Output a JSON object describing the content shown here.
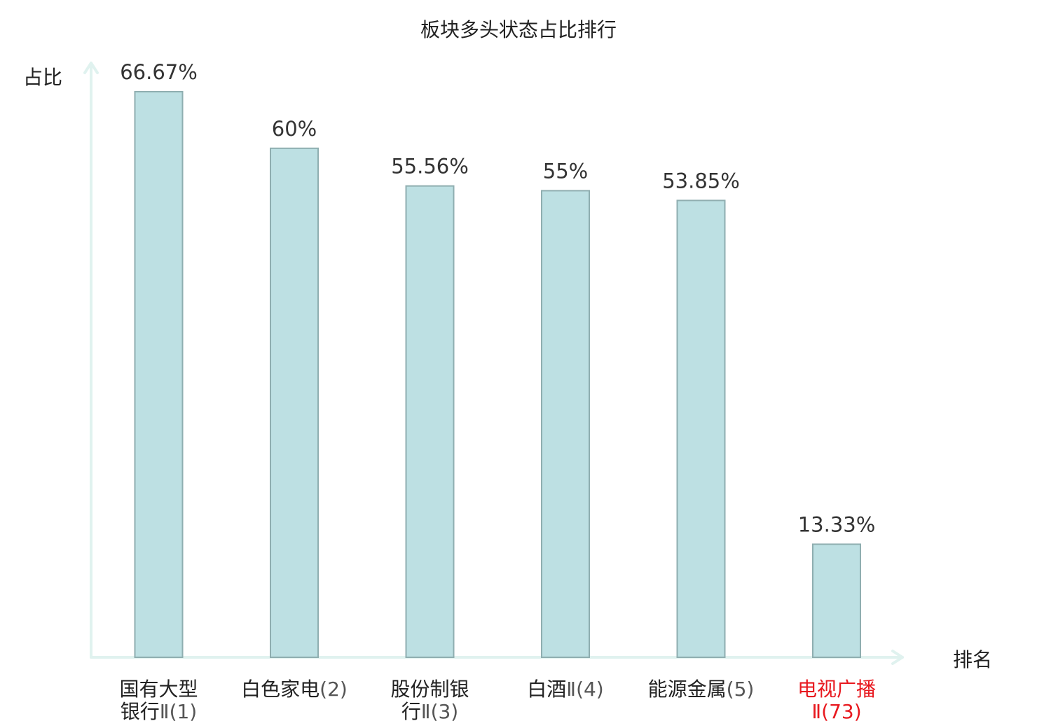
{
  "chart_data": {
    "type": "bar",
    "title": "板块多头状态占比排行",
    "ylabel": "占比",
    "xlabel": "排名",
    "ylim": [
      0,
      66.67
    ],
    "grid": false,
    "legend": "none",
    "categories": [
      {
        "lines": [
          {
            "main": "国有大型",
            "suffix": ""
          },
          {
            "main": "银行",
            "suffix": "Ⅱ(1)"
          }
        ],
        "highlight": false
      },
      {
        "lines": [
          {
            "main": "白色家电",
            "suffix": "(2)"
          }
        ],
        "highlight": false
      },
      {
        "lines": [
          {
            "main": "股份制银",
            "suffix": ""
          },
          {
            "main": "行",
            "suffix": "Ⅱ(3)"
          }
        ],
        "highlight": false
      },
      {
        "lines": [
          {
            "main": "白酒",
            "suffix": "Ⅱ(4)"
          }
        ],
        "highlight": false
      },
      {
        "lines": [
          {
            "main": "能源金属",
            "suffix": "(5)"
          }
        ],
        "highlight": false
      },
      {
        "lines": [
          {
            "main": "电视广播",
            "suffix": ""
          },
          {
            "main": "",
            "suffix": "Ⅱ(73)"
          }
        ],
        "highlight": true
      }
    ],
    "values": [
      66.67,
      60,
      55.56,
      55,
      53.85,
      13.33
    ],
    "value_labels": [
      "66.67%",
      "60%",
      "55.56%",
      "55%",
      "53.85%",
      "13.33%"
    ],
    "colors": {
      "bar_fill": "#bde0e3",
      "bar_stroke": "#8faeb0",
      "axis": "#e0f2ef",
      "highlight": "#e8191f"
    }
  }
}
